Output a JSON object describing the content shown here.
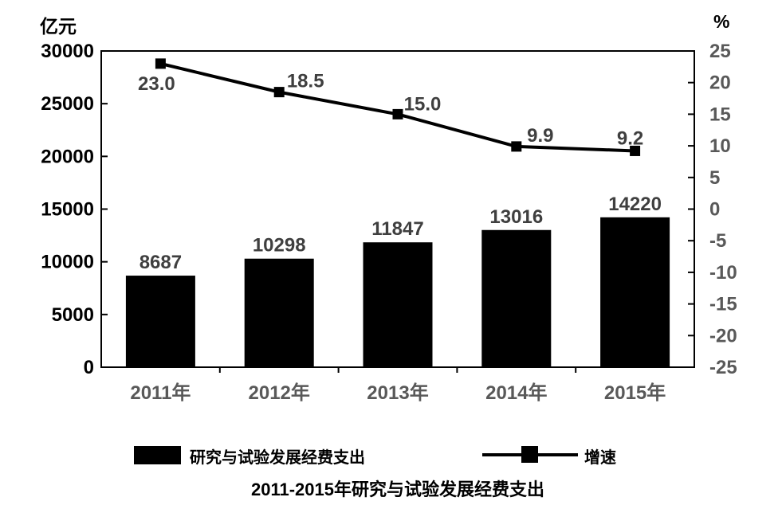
{
  "title": "2011-2015年研究与试验发展经费支出",
  "axis_units": {
    "left": "亿元",
    "right": "%"
  },
  "legend": {
    "bar_label": "研究与试验发展经费支出",
    "line_label": "增速"
  },
  "colors": {
    "bar": "#000000",
    "line": "#000000",
    "marker": "#000000",
    "axis_line": "#000000",
    "left_tick_text": "#000000",
    "gray_tick_text": "#595959",
    "data_label_text": "#3f3f3f",
    "background": "#ffffff"
  },
  "chart_data": {
    "type": "bar+line combo",
    "title": "2011-2015年研究与试验发展经费支出",
    "categories": [
      "2011年",
      "2012年",
      "2013年",
      "2014年",
      "2015年"
    ],
    "series": [
      {
        "name": "研究与试验发展经费支出",
        "type": "bar",
        "axis": "left",
        "values": [
          8687,
          10298,
          11847,
          13016,
          14220
        ],
        "labels": [
          "8687",
          "10298",
          "11847",
          "13016",
          "14220"
        ]
      },
      {
        "name": "增速",
        "type": "line",
        "axis": "right",
        "marker": "square",
        "values": [
          23.0,
          18.5,
          15.0,
          9.9,
          9.2
        ],
        "labels": [
          "23.0",
          "18.5",
          "15.0",
          "9.9",
          "9.2"
        ]
      }
    ],
    "left_axis": {
      "unit": "亿元",
      "min": 0,
      "max": 30000,
      "step": 5000,
      "tick_labels": [
        "0",
        "5000",
        "10000",
        "15000",
        "20000",
        "25000",
        "30000"
      ]
    },
    "right_axis": {
      "unit": "%",
      "min": -25,
      "max": 25,
      "step": 5,
      "tick_labels": [
        "-25",
        "-20",
        "-15",
        "-10",
        "-5",
        "0",
        "5",
        "10",
        "15",
        "20",
        "25"
      ]
    },
    "grid": false,
    "legend_position": "bottom"
  }
}
